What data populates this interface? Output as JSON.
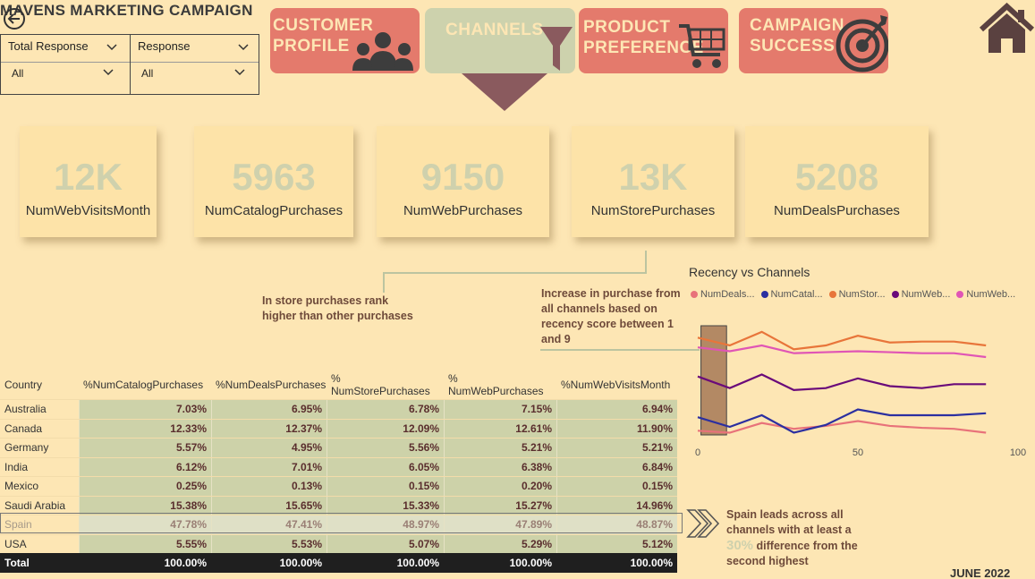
{
  "app_title": "MAVENS MARKETING CAMPAIGN",
  "icons": {
    "back": "back-arrow-icon",
    "home": "home-icon",
    "people": "people-icon",
    "funnel": "funnel-icon",
    "cart": "cart-icon",
    "target": "target-icon",
    "chevron": "chevron-right-icon"
  },
  "colors": {
    "background": "#fde6b4",
    "nav_red": "#e47a6c",
    "nav_active": "#cdd2ad",
    "pointer": "#8a5a5e",
    "kpi_value": "#cfd1ad",
    "note_text": "#6e4a3a"
  },
  "slicers": [
    {
      "label": "Total Response",
      "value": "All"
    },
    {
      "label": "Response",
      "value": "All"
    }
  ],
  "nav": [
    {
      "label": "CUSTOMER\nPROFILE",
      "active": false
    },
    {
      "label": "CHANNELS",
      "active": true
    },
    {
      "label": "PRODUCT\nPREFERENCE",
      "active": false
    },
    {
      "label": "CAMPAIGN\nSUCCESS",
      "active": false
    }
  ],
  "kpis": [
    {
      "value": "12K",
      "label": "NumWebVisitsMonth"
    },
    {
      "value": "5963",
      "label": "NumCatalogPurchases"
    },
    {
      "value": "9150",
      "label": "NumWebPurchases"
    },
    {
      "value": "13K",
      "label": "NumStorePurchases"
    },
    {
      "value": "5208",
      "label": "NumDealsPurchases"
    }
  ],
  "notes": {
    "store": "In store purchases rank higher than other purchases",
    "recency": "Increase in purchase from all channels based on recency score between 1 and 9",
    "spain_pre": "Spain leads across all channels with at least a",
    "spain_pct": "30%",
    "spain_post": "difference from the second highest"
  },
  "table": {
    "headers": [
      "Country",
      "%NumCatalogPurchases",
      "%NumDealsPurchases",
      "% NumStorePurchases",
      "% NumWebPurchases",
      "%NumWebVisitsMonth"
    ],
    "rows": [
      [
        "Australia",
        "7.03%",
        "6.95%",
        "6.78%",
        "7.15%",
        "6.94%"
      ],
      [
        "Canada",
        "12.33%",
        "12.37%",
        "12.09%",
        "12.61%",
        "11.90%"
      ],
      [
        "Germany",
        "5.57%",
        "4.95%",
        "5.56%",
        "5.21%",
        "5.21%"
      ],
      [
        "India",
        "6.12%",
        "7.01%",
        "6.05%",
        "6.38%",
        "6.84%"
      ],
      [
        "Mexico",
        "0.25%",
        "0.13%",
        "0.15%",
        "0.20%",
        "0.15%"
      ],
      [
        "Saudi Arabia",
        "15.38%",
        "15.65%",
        "15.33%",
        "15.27%",
        "14.96%"
      ],
      [
        "Spain",
        "47.78%",
        "47.41%",
        "48.97%",
        "47.89%",
        "48.87%"
      ],
      [
        "USA",
        "5.55%",
        "5.53%",
        "5.07%",
        "5.29%",
        "5.12%"
      ]
    ],
    "total": [
      "Total",
      "100.00%",
      "100.00%",
      "100.00%",
      "100.00%",
      "100.00%"
    ]
  },
  "date_label": "JUNE 2022",
  "chart_data": {
    "type": "line",
    "title": "Recency vs Channels",
    "xlabel": "",
    "ylabel": "",
    "xlim": [
      0,
      100
    ],
    "xticks": [
      0,
      50,
      100
    ],
    "ylim": [
      0,
      12
    ],
    "highlight_x_range": [
      1,
      9
    ],
    "x": [
      0,
      10,
      20,
      30,
      40,
      50,
      60,
      70,
      80,
      90
    ],
    "series": [
      {
        "name": "NumDeals...",
        "color": "#e8727a",
        "values": [
          0.8,
          0.6,
          1.6,
          1.0,
          1.3,
          1.8,
          1.3,
          1.1,
          1.0,
          0.6
        ]
      },
      {
        "name": "NumCatal...",
        "color": "#2b2fa0",
        "values": [
          2.2,
          1.2,
          2.4,
          0.6,
          1.4,
          3.0,
          2.4,
          2.4,
          2.4,
          2.6
        ]
      },
      {
        "name": "NumStor...",
        "color": "#e8753a",
        "values": [
          10.4,
          9.6,
          11.0,
          9.2,
          9.6,
          10.6,
          9.9,
          10.0,
          10.0,
          9.6
        ]
      },
      {
        "name": "NumWeb...",
        "color": "#6a0a7a",
        "values": [
          6.4,
          5.2,
          6.6,
          5.0,
          5.2,
          6.2,
          5.4,
          5.2,
          5.6,
          5.6
        ]
      },
      {
        "name": "NumWeb...",
        "color": "#e055b5",
        "values": [
          9.4,
          9.0,
          9.6,
          8.8,
          8.9,
          9.0,
          8.9,
          8.8,
          8.8,
          8.4
        ]
      }
    ]
  }
}
